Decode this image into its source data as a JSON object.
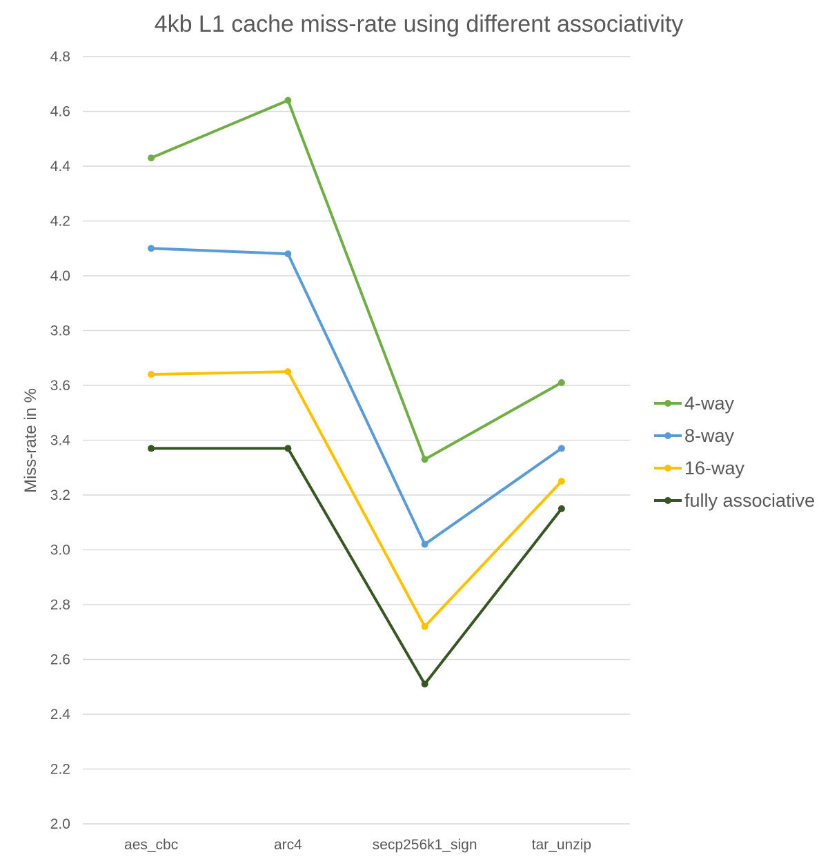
{
  "chart_data": {
    "type": "line",
    "title": "4kb L1 cache miss-rate using different associativity",
    "xlabel": "",
    "ylabel": "Miss-rate in %",
    "categories": [
      "aes_cbc",
      "arc4",
      "secp256k1_sign",
      "tar_unzip"
    ],
    "ylim": [
      2.0,
      4.8
    ],
    "yticks": [
      "2.0",
      "2.2",
      "2.4",
      "2.6",
      "2.8",
      "3.0",
      "3.2",
      "3.4",
      "3.6",
      "3.8",
      "4.0",
      "4.2",
      "4.4",
      "4.6",
      "4.8"
    ],
    "grid": true,
    "legend_position": "right",
    "series": [
      {
        "name": "4-way",
        "color": "#70ad47",
        "values": [
          4.43,
          4.64,
          3.33,
          3.61
        ]
      },
      {
        "name": "8-way",
        "color": "#5b9bd5",
        "values": [
          4.1,
          4.08,
          3.02,
          3.37
        ]
      },
      {
        "name": "16-way",
        "color": "#ffc000",
        "values": [
          3.64,
          3.65,
          2.72,
          3.25
        ]
      },
      {
        "name": "fully associative",
        "color": "#375623",
        "values": [
          3.37,
          3.37,
          2.51,
          3.15
        ]
      }
    ]
  }
}
